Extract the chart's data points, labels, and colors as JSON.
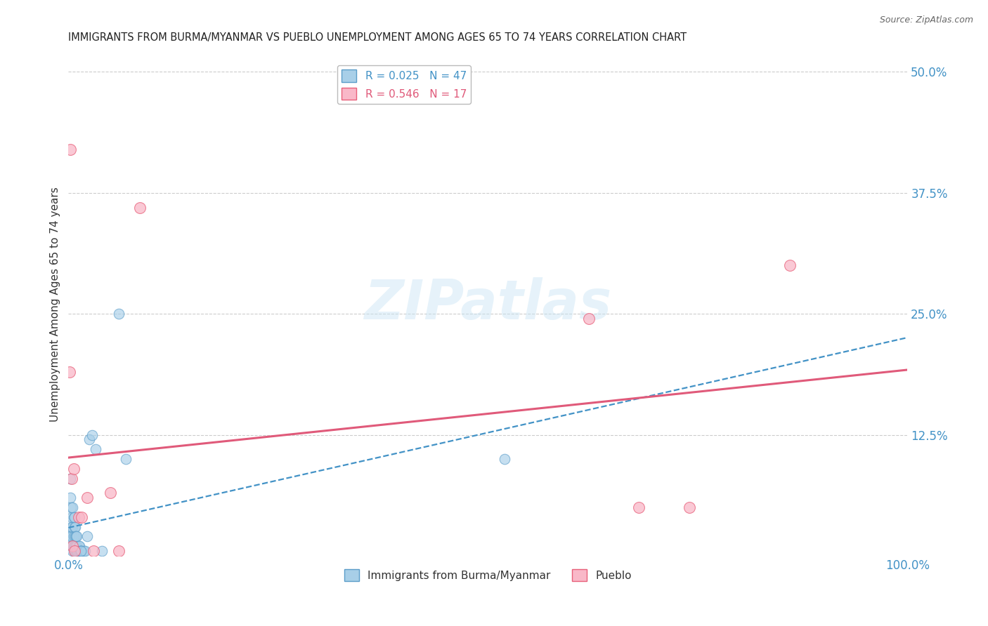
{
  "title": "IMMIGRANTS FROM BURMA/MYANMAR VS PUEBLO UNEMPLOYMENT AMONG AGES 65 TO 74 YEARS CORRELATION CHART",
  "source": "Source: ZipAtlas.com",
  "ylabel": "Unemployment Among Ages 65 to 74 years",
  "watermark": "ZIPatlas",
  "legend_label1": "Immigrants from Burma/Myanmar",
  "legend_label2": "Pueblo",
  "R1": 0.025,
  "N1": 47,
  "R2": 0.546,
  "N2": 17,
  "blue_face": "#a8cfe8",
  "blue_edge": "#5b9dc9",
  "pink_face": "#f9b8c8",
  "pink_edge": "#e8607a",
  "blue_line_color": "#4292c6",
  "pink_line_color": "#e05a7a",
  "ytick_labels": [
    "12.5%",
    "25.0%",
    "37.5%",
    "50.0%"
  ],
  "ytick_values": [
    0.125,
    0.25,
    0.375,
    0.5
  ],
  "xlim": [
    0.0,
    1.0
  ],
  "ylim": [
    0.0,
    0.52
  ],
  "blue_x": [
    0.001,
    0.002,
    0.002,
    0.003,
    0.003,
    0.004,
    0.004,
    0.004,
    0.005,
    0.005,
    0.005,
    0.005,
    0.006,
    0.006,
    0.006,
    0.007,
    0.007,
    0.007,
    0.007,
    0.008,
    0.008,
    0.008,
    0.008,
    0.009,
    0.009,
    0.009,
    0.01,
    0.01,
    0.01,
    0.011,
    0.012,
    0.012,
    0.013,
    0.014,
    0.015,
    0.016,
    0.018,
    0.02,
    0.022,
    0.025,
    0.028,
    0.032,
    0.04,
    0.06,
    0.068,
    0.52,
    0.015
  ],
  "blue_y": [
    0.02,
    0.06,
    0.08,
    0.03,
    0.05,
    0.01,
    0.02,
    0.04,
    0.005,
    0.01,
    0.03,
    0.05,
    0.01,
    0.02,
    0.04,
    0.005,
    0.01,
    0.03,
    0.04,
    0.005,
    0.01,
    0.02,
    0.03,
    0.005,
    0.01,
    0.02,
    0.005,
    0.01,
    0.02,
    0.005,
    0.005,
    0.01,
    0.01,
    0.005,
    0.005,
    0.005,
    0.005,
    0.005,
    0.02,
    0.12,
    0.125,
    0.11,
    0.005,
    0.25,
    0.1,
    0.1,
    0.005
  ],
  "pink_x": [
    0.001,
    0.002,
    0.004,
    0.005,
    0.006,
    0.007,
    0.012,
    0.016,
    0.022,
    0.03,
    0.05,
    0.06,
    0.085,
    0.62,
    0.68,
    0.74,
    0.86
  ],
  "pink_y": [
    0.19,
    0.42,
    0.08,
    0.01,
    0.09,
    0.005,
    0.04,
    0.04,
    0.06,
    0.005,
    0.065,
    0.005,
    0.36,
    0.245,
    0.05,
    0.05,
    0.3
  ],
  "background_color": "#ffffff",
  "grid_color": "#cccccc",
  "title_color": "#222222",
  "axis_tick_color": "#4292c6"
}
